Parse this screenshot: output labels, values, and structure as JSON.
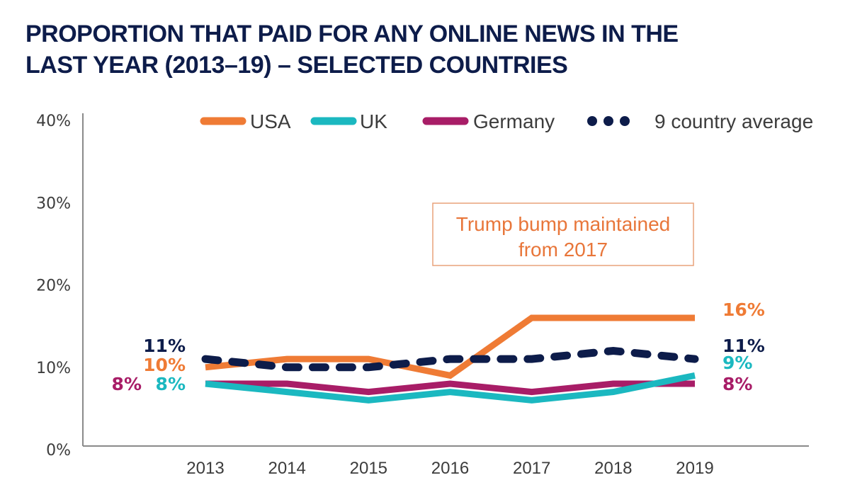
{
  "chart_data": {
    "type": "line",
    "title": "PROPORTION THAT PAID FOR ANY ONLINE NEWS IN THE LAST YEAR (2013–19) – SELECTED COUNTRIES",
    "title_lines": [
      "PROPORTION THAT PAID FOR ANY ONLINE NEWS IN THE",
      "LAST YEAR (2013–19) – SELECTED COUNTRIES"
    ],
    "xlabel": "",
    "ylabel": "",
    "x": [
      "2013",
      "2014",
      "2015",
      "2016",
      "2017",
      "2018",
      "2019"
    ],
    "ylim": [
      0,
      40
    ],
    "yticks": [
      0,
      10,
      20,
      30,
      40
    ],
    "ytick_labels": [
      "0%",
      "10%",
      "20%",
      "30%",
      "40%"
    ],
    "grid": false,
    "legend_position": "top",
    "series": [
      {
        "name": "USA",
        "color": "#ef7b35",
        "style": "solid",
        "values": [
          10,
          11,
          11,
          9,
          16,
          16,
          16
        ],
        "start_label": "10%",
        "end_label": "16%"
      },
      {
        "name": "UK",
        "color": "#1bb8c0",
        "style": "solid",
        "values": [
          8,
          7,
          6,
          7,
          6,
          7,
          9
        ],
        "start_label": "8%",
        "end_label": "9%"
      },
      {
        "name": "Germany",
        "color": "#a81d67",
        "style": "solid",
        "values": [
          8,
          8,
          7,
          8,
          7,
          8,
          8
        ],
        "start_label": "8%",
        "end_label": "8%"
      },
      {
        "name": "9 country average",
        "color": "#0d1c4a",
        "style": "dashed",
        "values": [
          11,
          10,
          10,
          11,
          11,
          12,
          11
        ],
        "start_label": "11%",
        "end_label": "11%"
      }
    ],
    "annotations": [
      {
        "text_lines": [
          "Trump bump maintained",
          "from 2017"
        ],
        "color": "#e8763a"
      }
    ]
  }
}
